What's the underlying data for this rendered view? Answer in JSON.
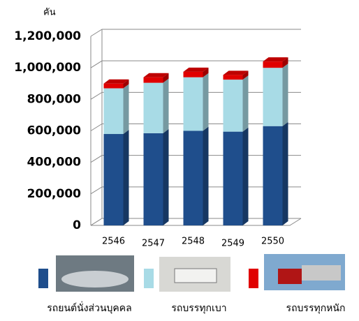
{
  "chart_data": {
    "type": "bar3d_stacked",
    "y_label": "คัน",
    "categories": [
      "2546",
      "2547",
      "2548",
      "2549",
      "2550"
    ],
    "series": [
      {
        "name": "รถยนต์นั่งส่วนบุคคล",
        "color": "#1f4e8c",
        "values": [
          580000,
          585000,
          600000,
          595000,
          630000
        ]
      },
      {
        "name": "รถบรรทุกเบา",
        "color": "#a8dbe6",
        "values": [
          290000,
          320000,
          340000,
          330000,
          370000
        ]
      },
      {
        "name": "รถบรรทุกหนัก",
        "color": "#e00000",
        "values": [
          30000,
          35000,
          35000,
          30000,
          40000
        ]
      }
    ],
    "ylim": [
      0,
      1200000
    ],
    "yticks": [
      {
        "value": 0,
        "label": "0"
      },
      {
        "value": 200000,
        "label": "200,000"
      },
      {
        "value": 400000,
        "label": "400,000"
      },
      {
        "value": 600000,
        "label": "600,000"
      },
      {
        "value": 800000,
        "label": "800,000"
      },
      {
        "value": 1000000,
        "label": "1,000,000"
      },
      {
        "value": 1200000,
        "label": "1,200,000"
      }
    ],
    "grid": true
  }
}
